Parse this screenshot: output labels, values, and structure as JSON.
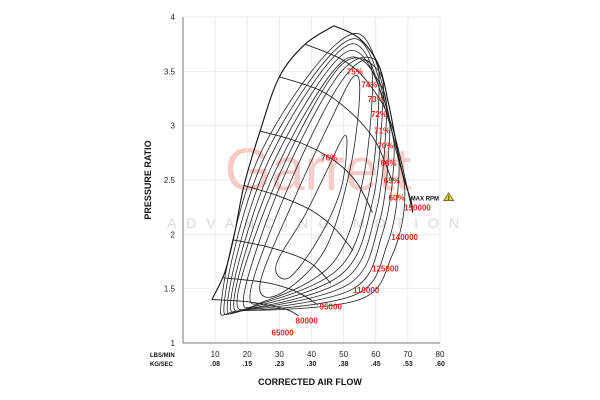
{
  "chart_data": {
    "type": "line",
    "title": "",
    "xlabel": "CORRECTED AIR FLOW",
    "ylabel": "PRESSURE RATIO",
    "x_unit_labels": [
      "LBS/MIN",
      "KG/SEC"
    ],
    "xlim": [
      0,
      80
    ],
    "ylim": [
      1,
      4
    ],
    "x_ticks": [
      10,
      20,
      30,
      40,
      50,
      60,
      70,
      80
    ],
    "x_ticks_kg": [
      ".08",
      ".15",
      ".23",
      ".30",
      ".38",
      ".45",
      ".53",
      ".60"
    ],
    "y_ticks": [
      1,
      1.5,
      2,
      2.5,
      3,
      3.5,
      4
    ],
    "y_tick_labels": [
      "1",
      "1.5",
      "2",
      "2.5",
      "3",
      "3.5",
      "4"
    ],
    "grid": true,
    "watermark": {
      "brand": "Garrett",
      "sub": "ADVANCING MOTION"
    },
    "surge_line": [
      [
        9,
        1.4
      ],
      [
        13,
        1.65
      ],
      [
        16,
        2.0
      ],
      [
        19,
        2.45
      ],
      [
        24,
        2.95
      ],
      [
        30,
        3.45
      ],
      [
        38,
        3.75
      ],
      [
        47,
        3.92
      ]
    ],
    "choke_line": [
      [
        47,
        3.92
      ],
      [
        55,
        3.8
      ],
      [
        61,
        3.55
      ],
      [
        64,
        3.2
      ],
      [
        66,
        2.9
      ],
      [
        68,
        2.6
      ],
      [
        71,
        2.3
      ],
      [
        71.5,
        2.2
      ]
    ],
    "speed_lines": [
      {
        "label": "65000",
        "points": [
          [
            9,
            1.4
          ],
          [
            20,
            1.38
          ],
          [
            28,
            1.34
          ],
          [
            33,
            1.3
          ],
          [
            36,
            1.25
          ]
        ]
      },
      {
        "label": "80000",
        "points": [
          [
            12.5,
            1.6
          ],
          [
            25,
            1.56
          ],
          [
            33,
            1.5
          ],
          [
            38,
            1.43
          ],
          [
            42,
            1.35
          ]
        ]
      },
      {
        "label": "95000",
        "points": [
          [
            15.5,
            1.95
          ],
          [
            27,
            1.88
          ],
          [
            37,
            1.78
          ],
          [
            42,
            1.68
          ],
          [
            46,
            1.55
          ]
        ]
      },
      {
        "label": "110000",
        "points": [
          [
            19,
            2.45
          ],
          [
            30,
            2.35
          ],
          [
            40,
            2.22
          ],
          [
            47,
            2.06
          ],
          [
            53,
            1.85
          ]
        ]
      },
      {
        "label": "125000",
        "points": [
          [
            24,
            2.95
          ],
          [
            36,
            2.85
          ],
          [
            47,
            2.68
          ],
          [
            54,
            2.48
          ],
          [
            59,
            2.2
          ]
        ]
      },
      {
        "label": "140000",
        "points": [
          [
            30,
            3.45
          ],
          [
            43,
            3.32
          ],
          [
            53,
            3.1
          ],
          [
            60,
            2.85
          ],
          [
            65,
            2.5
          ]
        ]
      },
      {
        "label": "150000",
        "points": [
          [
            38,
            3.75
          ],
          [
            50,
            3.6
          ],
          [
            58,
            3.38
          ],
          [
            65,
            3.0
          ],
          [
            71.5,
            2.2
          ]
        ]
      }
    ],
    "efficiency_islands": [
      {
        "label": "76%",
        "label_at": [
          45.5,
          2.68
        ],
        "points": [
          [
            29,
            1.72
          ],
          [
            38,
            2.18
          ],
          [
            45,
            2.6
          ],
          [
            50,
            2.9
          ],
          [
            51,
            2.8
          ],
          [
            49,
            2.4
          ],
          [
            42,
            1.95
          ],
          [
            33,
            1.6
          ],
          [
            29,
            1.72
          ]
        ]
      },
      {
        "label": "75%",
        "label_at": [
          53.5,
          3.47
        ],
        "points": [
          [
            24,
            1.55
          ],
          [
            35,
            2.35
          ],
          [
            46,
            3.05
          ],
          [
            53,
            3.45
          ],
          [
            55,
            3.3
          ],
          [
            52,
            2.6
          ],
          [
            44,
            1.85
          ],
          [
            30,
            1.45
          ],
          [
            24,
            1.55
          ]
        ]
      },
      {
        "label": "74%",
        "label_at": [
          58,
          3.35
        ],
        "points": [
          [
            21,
            1.48
          ],
          [
            33,
            2.45
          ],
          [
            47,
            3.3
          ],
          [
            56,
            3.6
          ],
          [
            59,
            3.4
          ],
          [
            56,
            2.5
          ],
          [
            47,
            1.75
          ],
          [
            27,
            1.4
          ],
          [
            21,
            1.48
          ]
        ]
      },
      {
        "label": "73%",
        "label_at": [
          60,
          3.22
        ],
        "points": [
          [
            19,
            1.45
          ],
          [
            31,
            2.5
          ],
          [
            48,
            3.45
          ],
          [
            59,
            3.62
          ],
          [
            61,
            3.3
          ],
          [
            58,
            2.4
          ],
          [
            49,
            1.7
          ],
          [
            25,
            1.37
          ],
          [
            19,
            1.45
          ]
        ]
      },
      {
        "label": "72%",
        "label_at": [
          61,
          3.08
        ],
        "points": [
          [
            17,
            1.44
          ],
          [
            30,
            2.55
          ],
          [
            49,
            3.55
          ],
          [
            61,
            3.5
          ],
          [
            62,
            3.1
          ],
          [
            59,
            2.3
          ],
          [
            50,
            1.65
          ],
          [
            24,
            1.35
          ],
          [
            17,
            1.44
          ]
        ]
      },
      {
        "label": "71%",
        "label_at": [
          62,
          2.93
        ],
        "points": [
          [
            16,
            1.43
          ],
          [
            29,
            2.6
          ],
          [
            50,
            3.6
          ],
          [
            62,
            3.35
          ],
          [
            63,
            2.9
          ],
          [
            60,
            2.2
          ],
          [
            51,
            1.6
          ],
          [
            23,
            1.33
          ],
          [
            16,
            1.43
          ]
        ]
      },
      {
        "label": "70%",
        "label_at": [
          63,
          2.79
        ],
        "points": [
          [
            15,
            1.42
          ],
          [
            28,
            2.65
          ],
          [
            51,
            3.68
          ],
          [
            63,
            3.2
          ],
          [
            64,
            2.75
          ],
          [
            61,
            2.1
          ],
          [
            52,
            1.55
          ],
          [
            22,
            1.32
          ],
          [
            15,
            1.42
          ]
        ]
      },
      {
        "label": "68%",
        "label_at": [
          64,
          2.63
        ],
        "points": [
          [
            14,
            1.41
          ],
          [
            27,
            2.7
          ],
          [
            52,
            3.75
          ],
          [
            64,
            3.05
          ],
          [
            65.5,
            2.6
          ],
          [
            62,
            2.0
          ],
          [
            53,
            1.5
          ],
          [
            21,
            1.31
          ],
          [
            14,
            1.41
          ]
        ]
      },
      {
        "label": "65%",
        "label_at": [
          65,
          2.47
        ],
        "points": [
          [
            13,
            1.41
          ],
          [
            26,
            2.75
          ],
          [
            53,
            3.8
          ],
          [
            65.5,
            2.9
          ],
          [
            67,
            2.45
          ],
          [
            63.5,
            1.9
          ],
          [
            54,
            1.45
          ],
          [
            20,
            1.3
          ],
          [
            13,
            1.41
          ]
        ]
      },
      {
        "label": "60%",
        "label_at": [
          66.5,
          2.31
        ],
        "points": [
          [
            12,
            1.4
          ],
          [
            25,
            2.8
          ],
          [
            54,
            3.85
          ],
          [
            66.5,
            2.75
          ],
          [
            69,
            2.3
          ],
          [
            65,
            1.8
          ],
          [
            55,
            1.4
          ],
          [
            19,
            1.3
          ],
          [
            12,
            1.4
          ]
        ]
      }
    ],
    "max_rpm": {
      "label": "MAX RPM",
      "at": [
        71.5,
        2.3
      ]
    },
    "speed_label_positions": {
      "65000": [
        31,
        1.07
      ],
      "80000": [
        38.5,
        1.18
      ],
      "95000": [
        46,
        1.31
      ],
      "110000": [
        57,
        1.46
      ],
      "125000": [
        63,
        1.66
      ],
      "140000": [
        69,
        1.95
      ],
      "150000": [
        73,
        2.22
      ]
    }
  }
}
